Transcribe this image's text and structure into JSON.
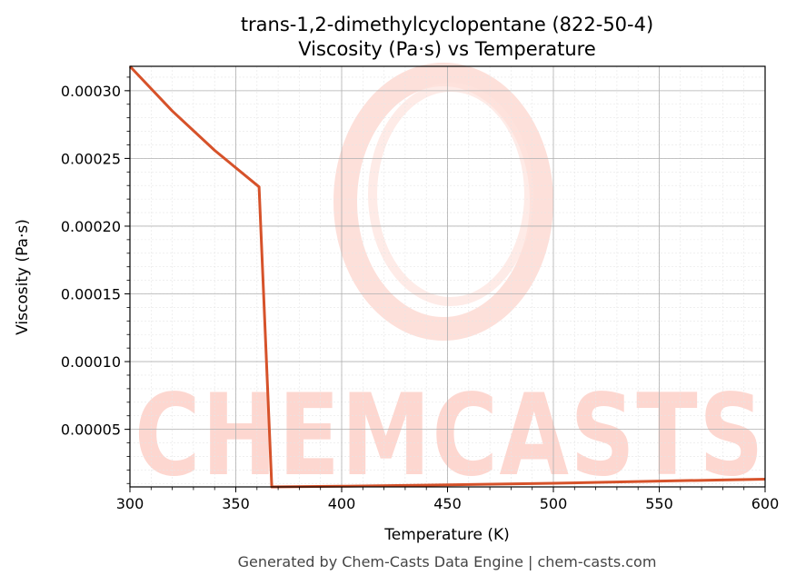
{
  "chart_data": {
    "type": "line",
    "title": "trans-1,2-dimethylcyclopentane (822-50-4)",
    "subtitle": "Viscosity (Pa·s) vs Temperature",
    "xlabel": "Temperature (K)",
    "ylabel": "Viscosity (Pa·s)",
    "xlim": [
      300,
      600
    ],
    "ylim": [
      7.5e-06,
      0.000318
    ],
    "xticks": [
      300,
      350,
      400,
      450,
      500,
      550,
      600
    ],
    "xtick_labels": [
      "300",
      "350",
      "400",
      "450",
      "500",
      "550",
      "600"
    ],
    "yticks": [
      5e-05,
      0.0001,
      0.00015,
      0.0002,
      0.00025,
      0.0003
    ],
    "ytick_labels": [
      "0.00005",
      "0.00010",
      "0.00015",
      "0.00020",
      "0.00025",
      "0.00030"
    ],
    "grid": true,
    "minor_grid": true,
    "series": [
      {
        "color": "#d6522a",
        "x": [
          300,
          320,
          340,
          361,
          367,
          400,
          450,
          500,
          550,
          600
        ],
        "y": [
          0.000318,
          0.000285,
          0.000256,
          0.000229,
          7.5e-06,
          8e-06,
          9e-06,
          1.02e-05,
          1.18e-05,
          1.32e-05
        ]
      }
    ]
  },
  "watermark": {
    "text": "CHEMCASTS",
    "color": "#fdd7d0"
  },
  "footer": "Generated by Chem-Casts Data Engine | chem-casts.com"
}
